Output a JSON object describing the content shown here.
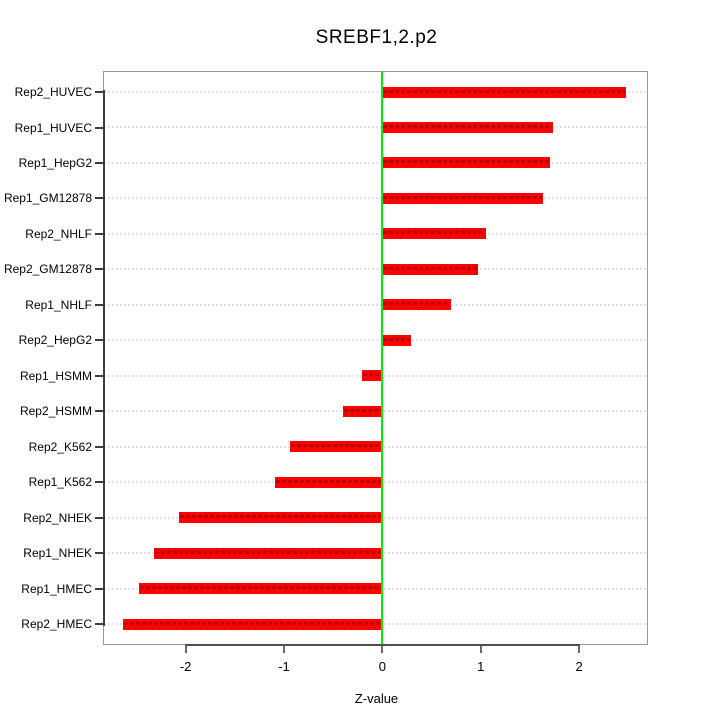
{
  "chart_data": {
    "type": "bar",
    "orientation": "horizontal",
    "title": "SREBF1,2.p2",
    "xlabel": "Z-value",
    "ylabel": "",
    "categories": [
      "Rep2_HUVEC",
      "Rep1_HUVEC",
      "Rep1_HepG2",
      "Rep1_GM12878",
      "Rep2_NHLF",
      "Rep2_GM12878",
      "Rep1_NHLF",
      "Rep2_HepG2",
      "Rep1_HSMM",
      "Rep2_HSMM",
      "Rep2_K562",
      "Rep1_K562",
      "Rep2_NHEK",
      "Rep1_NHEK",
      "Rep1_HMEC",
      "Rep2_HMEC"
    ],
    "values": [
      2.48,
      1.73,
      1.7,
      1.63,
      1.05,
      0.97,
      0.7,
      0.29,
      -0.21,
      -0.4,
      -0.94,
      -1.09,
      -2.07,
      -2.32,
      -2.47,
      -2.64
    ],
    "x_ticks": [
      -2,
      -1,
      0,
      1,
      2
    ],
    "x_tick_labels": [
      "-2",
      "-1",
      "0",
      "1",
      "2"
    ],
    "xlim": [
      -2.83,
      2.69
    ],
    "grid": "dotted-horizontal-per-row",
    "legend": "none",
    "colors": {
      "bar": "#ff0000",
      "bar_dash": "#bc0000",
      "zero_line": "#00ee00",
      "gridline": "#e2e2e2",
      "box_border": "#9a9a9a",
      "axis_line": "#3d3d3d",
      "text": "#000000"
    }
  }
}
